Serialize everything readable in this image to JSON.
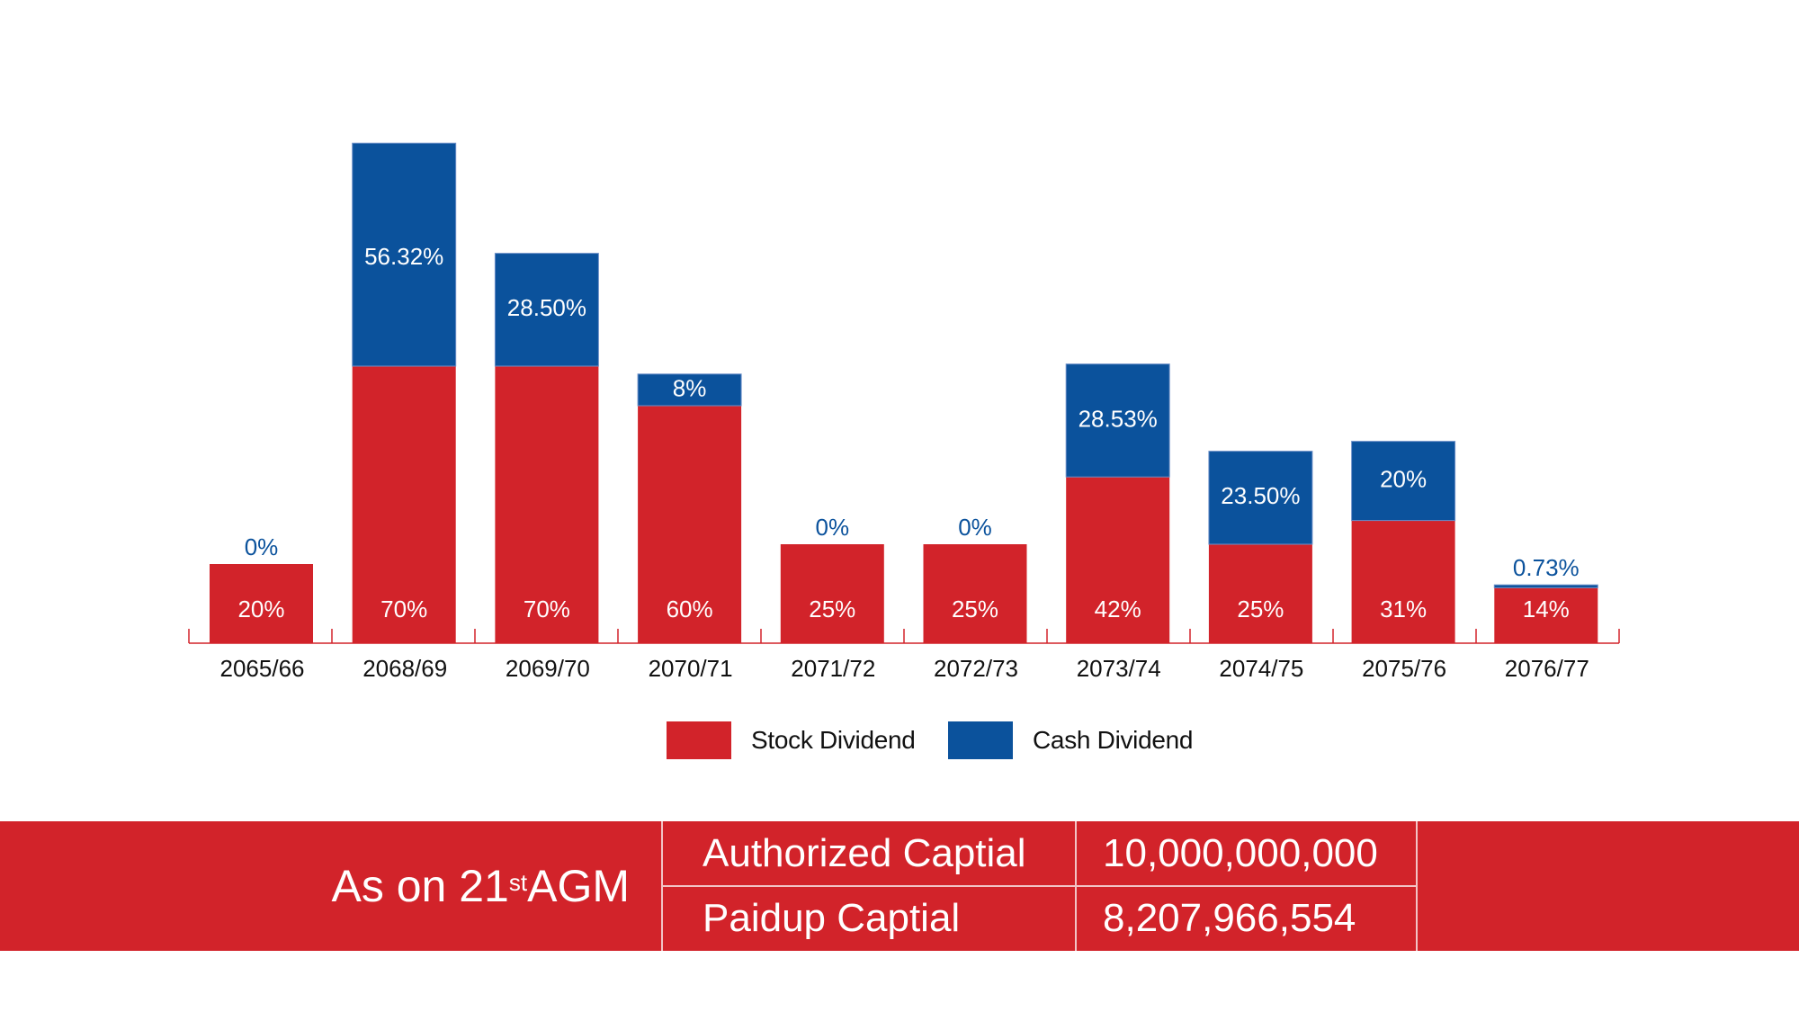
{
  "chart_data": {
    "type": "bar",
    "stacked": true,
    "categories": [
      "2065/66",
      "2068/69",
      "2069/70",
      "2070/71",
      "2071/72",
      "2072/73",
      "2073/74",
      "2074/75",
      "2075/76",
      "2076/77"
    ],
    "series": [
      {
        "name": "Stock Dividend",
        "color": "#d2232a",
        "values": [
          20,
          70,
          70,
          60,
          25,
          25,
          42,
          25,
          31,
          14
        ],
        "labels": [
          "20%",
          "70%",
          "70%",
          "60%",
          "25%",
          "25%",
          "42%",
          "25%",
          "31%",
          "14%"
        ]
      },
      {
        "name": "Cash Dividend",
        "color": "#0b529c",
        "values": [
          0,
          56.32,
          28.5,
          8,
          0,
          0,
          28.53,
          23.5,
          20,
          0.73
        ],
        "labels": [
          "0%",
          "56.32%",
          "28.50%",
          "8%",
          "0%",
          "0%",
          "28.53%",
          "23.50%",
          "20%",
          "0.73%"
        ]
      }
    ],
    "ylim": [
      0,
      130
    ],
    "grid": false,
    "legend": "bottom"
  },
  "legend": {
    "stock_label": "Stock Dividend",
    "cash_label": "Cash Dividend"
  },
  "summary": {
    "agm_prefix": "As on 21",
    "agm_sup": "st",
    "agm_suffix": " AGM",
    "rows": [
      {
        "label": "Authorized Captial",
        "value": "10,000,000,000"
      },
      {
        "label": "Paidup Captial",
        "value": "8,207,966,554"
      }
    ]
  },
  "colors": {
    "red": "#d2232a",
    "blue": "#0b529c"
  }
}
